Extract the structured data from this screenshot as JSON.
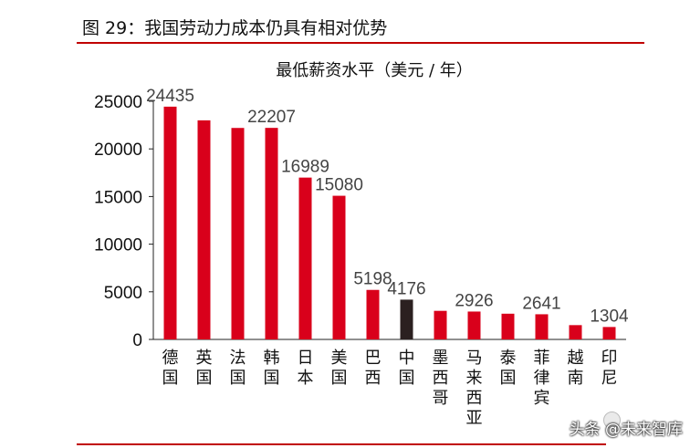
{
  "figure": {
    "caption": "图 29：我国劳动力成本仍具有相对优势"
  },
  "watermark": {
    "text": "头条 @未来智库"
  },
  "chart_data": {
    "type": "bar",
    "title": "最低薪资水平（美元 / 年）",
    "xlabel": "",
    "ylabel": "",
    "ylim": [
      0,
      25000
    ],
    "yticks": [
      0,
      5000,
      10000,
      15000,
      20000,
      25000
    ],
    "grid": false,
    "categories": [
      "德国",
      "英国",
      "法国",
      "韩国",
      "日本",
      "美国",
      "巴西",
      "中国",
      "墨西哥",
      "马来西亚",
      "泰国",
      "菲律宾",
      "越南",
      "印尼"
    ],
    "values": [
      24435,
      23000,
      22200,
      22207,
      16989,
      15080,
      5198,
      4176,
      3000,
      2926,
      2700,
      2641,
      1500,
      1304
    ],
    "data_labels": [
      "24435",
      "",
      "",
      "22207",
      "16989",
      "15080",
      "5198",
      "4176",
      "",
      "2926",
      "",
      "2641",
      "",
      "1304"
    ],
    "bar_color": "#d9001b",
    "highlight_color": "#2b2020",
    "highlight_category": "中国"
  }
}
